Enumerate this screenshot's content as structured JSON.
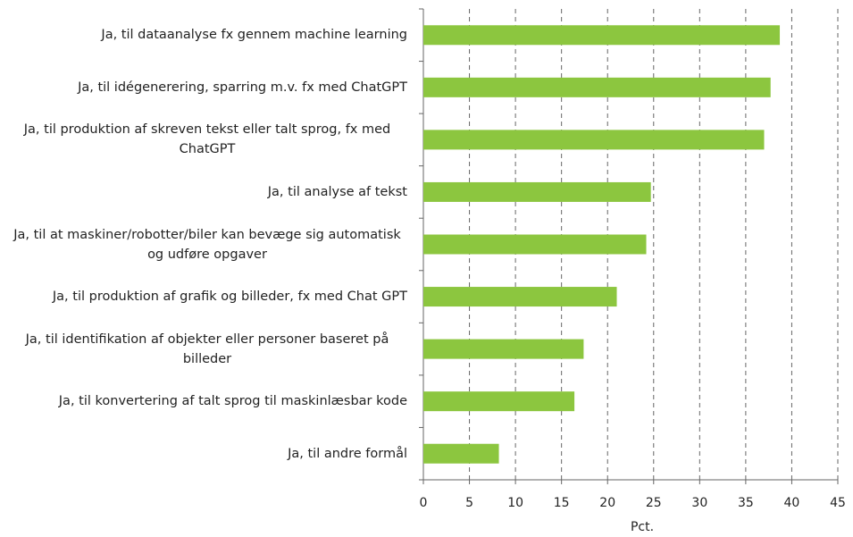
{
  "chart_data": {
    "type": "bar",
    "orientation": "horizontal",
    "categories": [
      "Ja, til dataanalyse fx gennem machine learning",
      "Ja, til idégenerering, sparring m.v. fx med ChatGPT",
      "Ja, til produktion af skreven tekst eller talt sprog, fx med ChatGPT",
      "Ja, til analyse af tekst",
      "Ja, til at maskiner/robotter/biler kan bevæge sig automatisk og udføre opgaver",
      "Ja, til produktion af grafik og billeder, fx med Chat GPT",
      "Ja, til identifikation af objekter eller personer baseret på billeder",
      "Ja, til konvertering af talt sprog til maskinlæsbar kode",
      "Ja, til andre formål"
    ],
    "values": [
      38.7,
      37.7,
      37.0,
      24.7,
      24.2,
      21.0,
      17.4,
      16.4,
      8.2
    ],
    "color": "#8cc63f",
    "xlabel": "Pct.",
    "xlim": [
      0,
      45
    ],
    "xticks": [
      0,
      5,
      10,
      15,
      20,
      25,
      30,
      35,
      40,
      45
    ],
    "grid": true
  }
}
